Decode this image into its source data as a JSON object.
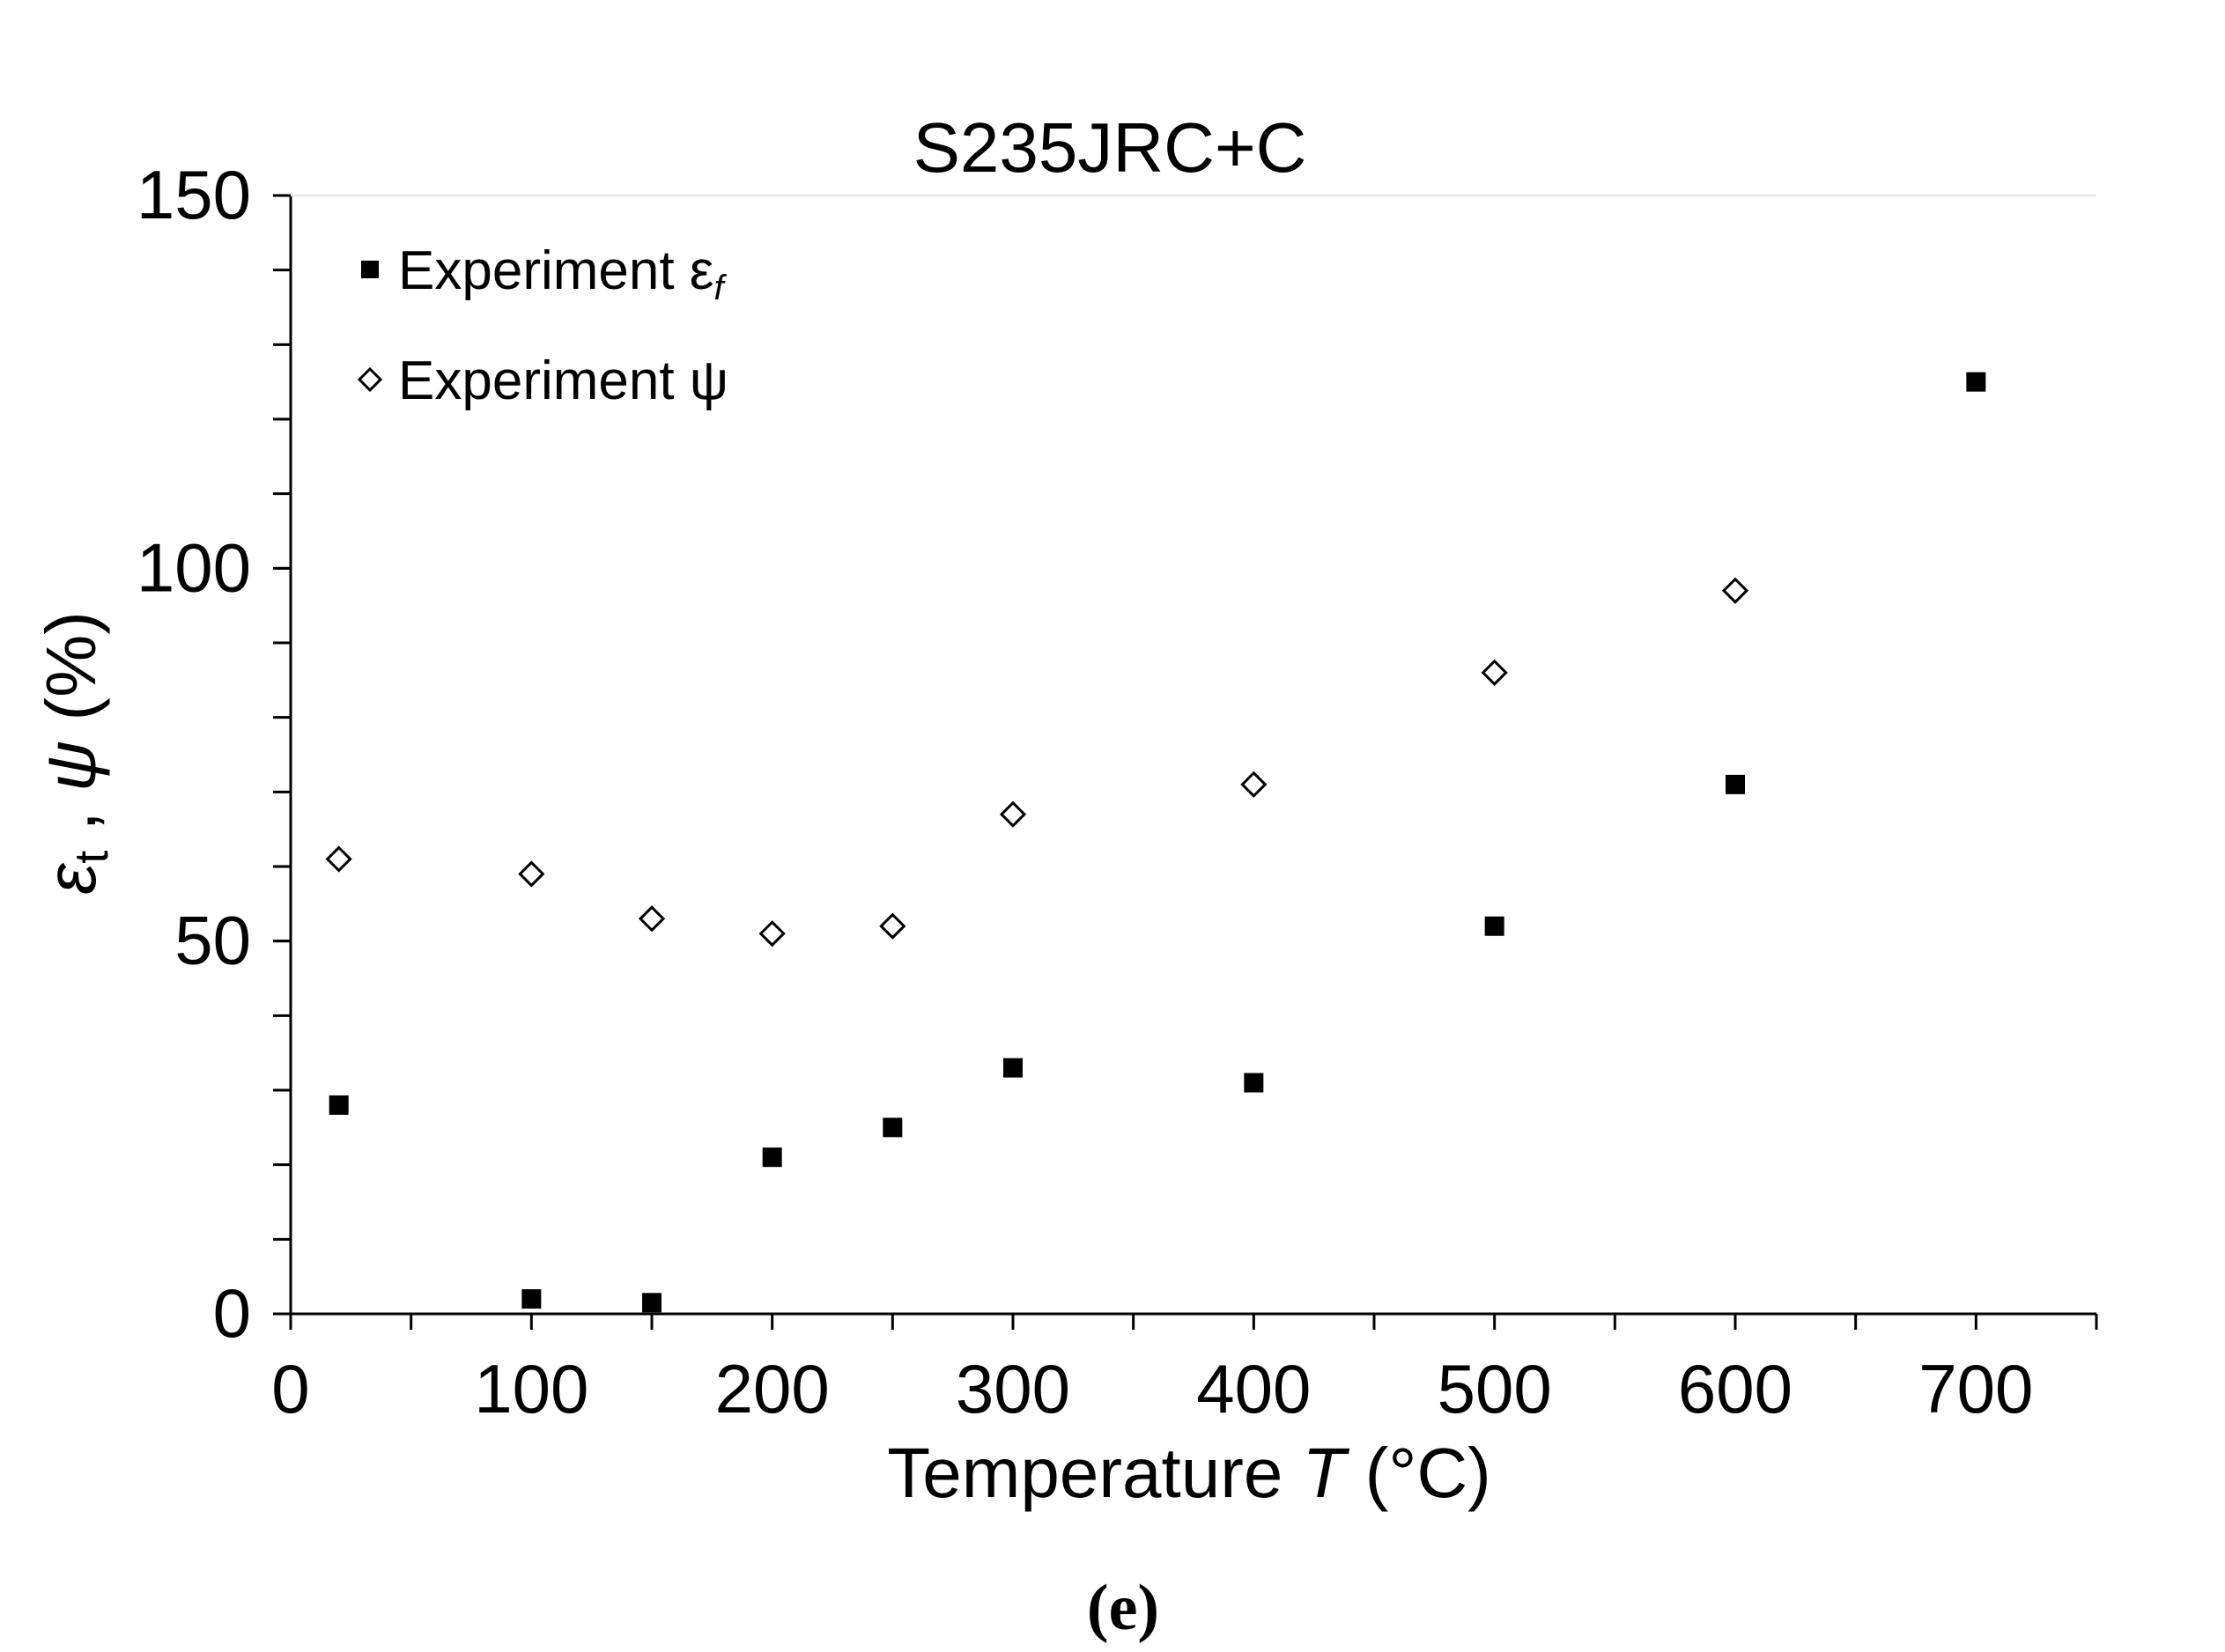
{
  "chart_data": {
    "type": "scatter",
    "title": "S235JRC+C",
    "xlabel": {
      "main": "Temperature ",
      "italic": "T",
      "rest": " (°C)"
    },
    "ylabel": {
      "eps_symbol": "ε",
      "eps_sub": "t",
      "separator": " , ",
      "psi_symbol": "ψ",
      "unit": " (%)"
    },
    "xlim": [
      0,
      750
    ],
    "ylim": [
      0,
      150
    ],
    "x_ticks": [
      0,
      100,
      200,
      300,
      400,
      500,
      600,
      700
    ],
    "y_ticks": [
      0,
      50,
      100,
      150
    ],
    "grid": "none",
    "legend_position": "top-left",
    "series": [
      {
        "name": "Experiment ε",
        "name_subscript": "f",
        "marker": "filled-square",
        "color": "#000000",
        "points": [
          {
            "x": 20,
            "y": 28
          },
          {
            "x": 100,
            "y": 2
          },
          {
            "x": 150,
            "y": 1.5
          },
          {
            "x": 200,
            "y": 21
          },
          {
            "x": 250,
            "y": 25
          },
          {
            "x": 300,
            "y": 33
          },
          {
            "x": 400,
            "y": 31
          },
          {
            "x": 500,
            "y": 52
          },
          {
            "x": 600,
            "y": 71
          },
          {
            "x": 700,
            "y": 125
          }
        ]
      },
      {
        "name": "Experiment ψ",
        "marker": "open-diamond",
        "color": "#000000",
        "points": [
          {
            "x": 20,
            "y": 61
          },
          {
            "x": 100,
            "y": 59
          },
          {
            "x": 150,
            "y": 53
          },
          {
            "x": 200,
            "y": 51
          },
          {
            "x": 250,
            "y": 52
          },
          {
            "x": 300,
            "y": 67
          },
          {
            "x": 400,
            "y": 71
          },
          {
            "x": 500,
            "y": 86
          },
          {
            "x": 600,
            "y": 97
          }
        ]
      }
    ]
  },
  "caption": "(e)"
}
